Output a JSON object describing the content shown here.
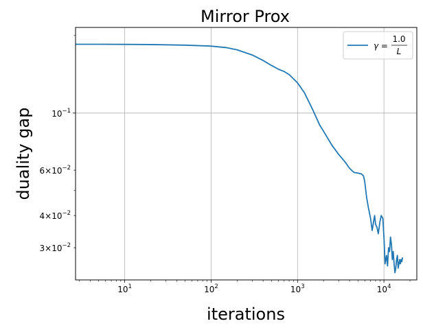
{
  "chart_data": {
    "type": "line",
    "title": "Mirror Prox",
    "xlabel": "iterations",
    "ylabel": "duality gap",
    "xscale": "log",
    "yscale": "log",
    "xlim": [
      2.7,
      24000
    ],
    "ylim": [
      0.0225,
      0.215
    ],
    "grid": true,
    "legend_position": "top-right",
    "x_ticks": [
      {
        "value": 10,
        "base": "10",
        "exp": "1"
      },
      {
        "value": 100,
        "base": "10",
        "exp": "2"
      },
      {
        "value": 1000,
        "base": "10",
        "exp": "3"
      },
      {
        "value": 10000,
        "base": "10",
        "exp": "4"
      }
    ],
    "y_ticks": [
      {
        "value": 0.1,
        "mant": "",
        "base": "10",
        "exp": "−1"
      },
      {
        "value": 0.06,
        "mant": "6×",
        "base": "10",
        "exp": "−2"
      },
      {
        "value": 0.04,
        "mant": "4×",
        "base": "10",
        "exp": "−2"
      },
      {
        "value": 0.03,
        "mant": "3×",
        "base": "10",
        "exp": "−2"
      }
    ],
    "series": [
      {
        "legend": {
          "gamma": "γ",
          "equals": " = ",
          "numerator": "1.0",
          "denominator": "L"
        },
        "color": "#1f77b4",
        "x": [
          2.7,
          5,
          10,
          20,
          50,
          100,
          150,
          200,
          300,
          400,
          500,
          600,
          700,
          800,
          1000,
          1200,
          1500,
          1800,
          2000,
          2500,
          3000,
          3500,
          4000,
          4500,
          5000,
          5500,
          5800,
          6000,
          6300,
          6600,
          7000,
          7300,
          7600,
          7800,
          8000,
          8300,
          8600,
          9000,
          9300,
          9700,
          10000,
          10300,
          10700,
          11000,
          11300,
          11600,
          11900,
          12200,
          12500,
          12800,
          13100,
          13400,
          13700,
          14000,
          14300,
          14600,
          14900,
          15200,
          15500,
          15800,
          16100,
          16400
        ],
        "y": [
          0.185,
          0.185,
          0.1848,
          0.1845,
          0.1835,
          0.182,
          0.1795,
          0.176,
          0.168,
          0.16,
          0.153,
          0.148,
          0.145,
          0.141,
          0.131,
          0.12,
          0.103,
          0.09,
          0.085,
          0.075,
          0.069,
          0.065,
          0.061,
          0.0588,
          0.0585,
          0.058,
          0.057,
          0.054,
          0.047,
          0.043,
          0.039,
          0.035,
          0.038,
          0.04,
          0.037,
          0.036,
          0.034,
          0.038,
          0.04,
          0.039,
          0.033,
          0.026,
          0.028,
          0.0255,
          0.03,
          0.029,
          0.033,
          0.031,
          0.027,
          0.029,
          0.026,
          0.024,
          0.025,
          0.027,
          0.028,
          0.025,
          0.026,
          0.027,
          0.026,
          0.027,
          0.0265,
          0.0275
        ]
      }
    ]
  }
}
